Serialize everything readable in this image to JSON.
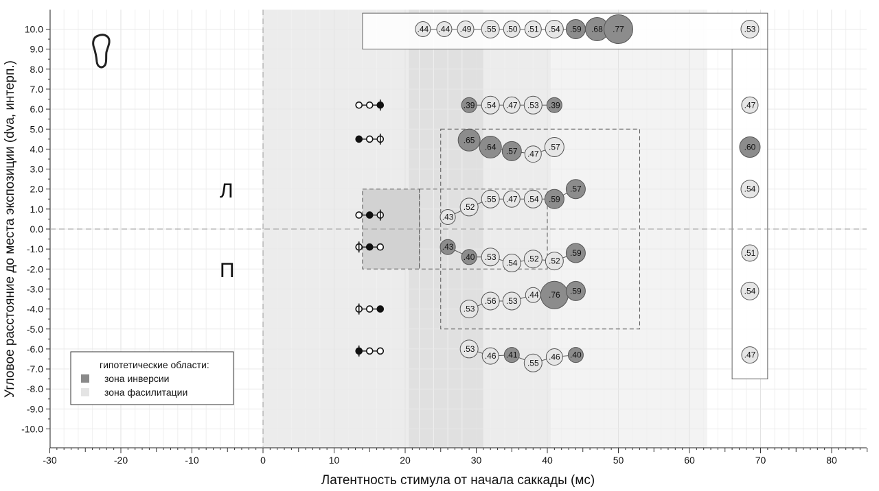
{
  "chart_data": {
    "type": "scatter",
    "title": "",
    "xlabel": "Латентность стимула от начала саккады (мс)",
    "ylabel": "Угловое расстояние до места экспозиции (dva, интерп.)",
    "xlim": [
      -30,
      85
    ],
    "ylim": [
      -11.0,
      11.0
    ],
    "x_ticks": [
      -30,
      -20,
      -10,
      0,
      10,
      20,
      30,
      40,
      50,
      60,
      70,
      80
    ],
    "y_ticks": [
      "10.0",
      "9.0",
      "8.0",
      "7.0",
      "6.0",
      "5.0",
      "4.0",
      "3.0",
      "2.0",
      "1.0",
      "0.0",
      "-1.0",
      "-2.0",
      "-3.0",
      "-4.0",
      "-5.0",
      "-6.0",
      "-7.0",
      "-8.0",
      "-9.0",
      "-10.0"
    ],
    "grid": true,
    "letters": {
      "left": "Л",
      "right": "П"
    },
    "legend": {
      "placement": "bottom-left",
      "title": "гипотетические области:",
      "items": [
        {
          "label": "зона инверсии",
          "color": "#8a8a8a"
        },
        {
          "label": "зона фасилитации",
          "color": "#e4e4e4"
        }
      ]
    },
    "colors": {
      "inversion_bubble": "#8c8c8c",
      "normal_bubble": "#e6e6e6",
      "bubble_stroke": "#555555",
      "band_light": "#ececec",
      "band_mid": "#e1e1e1"
    },
    "shaded_bands": [
      {
        "x": [
          0,
          20.5
        ],
        "shade": "light"
      },
      {
        "x": [
          20.5,
          31.0
        ],
        "shade": "mid"
      },
      {
        "x": [
          31.0,
          40.5
        ],
        "shade": "light"
      },
      {
        "x": [
          40.5,
          62.5
        ],
        "shade": "lightest"
      }
    ],
    "hypothesis_rects": [
      {
        "x": [
          14.0,
          22.0
        ],
        "y": [
          -2.0,
          2.0
        ],
        "style": "filled"
      },
      {
        "x": [
          25.0,
          53.0
        ],
        "y": [
          -5.0,
          5.0
        ],
        "style": "dashed"
      },
      {
        "x": [
          22.0,
          40.0
        ],
        "y": [
          -2.0,
          2.0
        ],
        "style": "dashed"
      }
    ],
    "panel_boxes": [
      {
        "x": [
          14.0,
          71.0
        ],
        "y": [
          9.0,
          10.8
        ]
      },
      {
        "x": [
          66.0,
          71.0
        ],
        "y": [
          -7.5,
          9.0
        ]
      }
    ],
    "series": [
      {
        "name": "10.0",
        "y": 10.0,
        "points": [
          {
            "x": 22.5,
            "v": ".44",
            "r": 11,
            "inv": false
          },
          {
            "x": 25.5,
            "v": ".44",
            "r": 11,
            "inv": false
          },
          {
            "x": 28.5,
            "v": ".49",
            "r": 12,
            "inv": false
          },
          {
            "x": 32.0,
            "v": ".55",
            "r": 13,
            "inv": false
          },
          {
            "x": 35.0,
            "v": ".50",
            "r": 12,
            "inv": false
          },
          {
            "x": 38.0,
            "v": ".51",
            "r": 12,
            "inv": false
          },
          {
            "x": 41.0,
            "v": ".54",
            "r": 13,
            "inv": false
          },
          {
            "x": 44.0,
            "v": ".59",
            "r": 14,
            "inv": true
          },
          {
            "x": 47.0,
            "v": ".68",
            "r": 17,
            "inv": true
          },
          {
            "x": 50.0,
            "v": ".77",
            "r": 21,
            "inv": true
          }
        ],
        "side": {
          "x": 68.5,
          "v": ".53",
          "r": 13,
          "inv": false
        }
      },
      {
        "name": "6.0",
        "y": 6.2,
        "points": [
          {
            "x": 29.0,
            "v": ".39",
            "r": 11,
            "inv": true
          },
          {
            "x": 32.0,
            "v": ".54",
            "r": 13,
            "inv": false
          },
          {
            "x": 35.0,
            "v": ".47",
            "r": 12,
            "inv": false
          },
          {
            "x": 38.0,
            "v": ".53",
            "r": 13,
            "inv": false
          },
          {
            "x": 41.0,
            "v": ".39",
            "r": 11,
            "inv": true
          }
        ],
        "side": {
          "x": 68.5,
          "v": ".47",
          "r": 12,
          "inv": false
        }
      },
      {
        "name": "4.0",
        "y": 4.1,
        "points": [
          {
            "x": 29.0,
            "v": ".65",
            "r": 16,
            "inv": true,
            "dy": 0.35
          },
          {
            "x": 32.0,
            "v": ".64",
            "r": 16,
            "inv": true
          },
          {
            "x": 35.0,
            "v": ".57",
            "r": 14,
            "inv": true,
            "dy": -0.2
          },
          {
            "x": 38.0,
            "v": ".47",
            "r": 12,
            "inv": false,
            "dy": -0.35
          },
          {
            "x": 41.0,
            "v": ".57",
            "r": 14,
            "inv": false
          }
        ],
        "side": {
          "x": 68.5,
          "v": ".60",
          "r": 15,
          "inv": true
        }
      },
      {
        "name": "1.0",
        "y": 1.5,
        "points": [
          {
            "x": 26.0,
            "v": ".43",
            "r": 11,
            "inv": false,
            "dy": -0.9
          },
          {
            "x": 29.0,
            "v": ".52",
            "r": 13,
            "inv": false,
            "dy": -0.4
          },
          {
            "x": 32.0,
            "v": ".55",
            "r": 13,
            "inv": false
          },
          {
            "x": 35.0,
            "v": ".47",
            "r": 12,
            "inv": false
          },
          {
            "x": 38.0,
            "v": ".54",
            "r": 13,
            "inv": false
          },
          {
            "x": 41.0,
            "v": ".59",
            "r": 14,
            "inv": true
          },
          {
            "x": 44.0,
            "v": ".57",
            "r": 14,
            "inv": true,
            "dy": 0.5
          }
        ],
        "side": {
          "x": 68.5,
          "v": ".54",
          "r": 13,
          "inv": false,
          "dy": 0.5
        }
      },
      {
        "name": "-1.0",
        "y": -1.5,
        "points": [
          {
            "x": 26.0,
            "v": ".43",
            "r": 11,
            "inv": true,
            "dy": 0.6
          },
          {
            "x": 29.0,
            "v": ".40",
            "r": 11,
            "inv": true,
            "dy": 0.1
          },
          {
            "x": 32.0,
            "v": ".53",
            "r": 13,
            "inv": false,
            "dy": 0.1
          },
          {
            "x": 35.0,
            "v": ".54",
            "r": 13,
            "inv": false,
            "dy": -0.2
          },
          {
            "x": 38.0,
            "v": ".52",
            "r": 13,
            "inv": false
          },
          {
            "x": 41.0,
            "v": ".52",
            "r": 13,
            "inv": false,
            "dy": -0.1
          },
          {
            "x": 44.0,
            "v": ".59",
            "r": 14,
            "inv": true,
            "dy": 0.3
          }
        ],
        "side": {
          "x": 68.5,
          "v": ".51",
          "r": 12,
          "inv": false,
          "dy": 0.3
        }
      },
      {
        "name": "-4.0",
        "y": -3.6,
        "points": [
          {
            "x": 29.0,
            "v": ".53",
            "r": 13,
            "inv": false,
            "dy": -0.4
          },
          {
            "x": 32.0,
            "v": ".56",
            "r": 13,
            "inv": false
          },
          {
            "x": 35.0,
            "v": ".53",
            "r": 13,
            "inv": false
          },
          {
            "x": 38.0,
            "v": ".44",
            "r": 11,
            "inv": false,
            "dy": 0.3
          },
          {
            "x": 41.0,
            "v": ".76",
            "r": 20,
            "inv": true,
            "dy": 0.3
          },
          {
            "x": 44.0,
            "v": ".59",
            "r": 14,
            "inv": true,
            "dy": 0.5
          }
        ],
        "side": {
          "x": 68.5,
          "v": ".54",
          "r": 13,
          "inv": false,
          "dy": 0.5
        }
      },
      {
        "name": "-6.0",
        "y": -6.35,
        "points": [
          {
            "x": 29.0,
            "v": ".53",
            "r": 13,
            "inv": false,
            "dy": 0.35
          },
          {
            "x": 32.0,
            "v": ".46",
            "r": 12,
            "inv": false
          },
          {
            "x": 35.0,
            "v": ".41",
            "r": 11,
            "inv": true,
            "dy": 0.05
          },
          {
            "x": 38.0,
            "v": ".55",
            "r": 13,
            "inv": false,
            "dy": -0.35
          },
          {
            "x": 41.0,
            "v": ".46",
            "r": 12,
            "inv": false,
            "dy": -0.05
          },
          {
            "x": 44.0,
            "v": ".40",
            "r": 11,
            "inv": true,
            "dy": 0.05
          }
        ],
        "side": {
          "x": 68.5,
          "v": ".47",
          "r": 12,
          "inv": false,
          "dy": 0.05
        }
      }
    ],
    "marker_rows": [
      {
        "y": 6.2,
        "markers": [
          "open",
          "open",
          "filled-cross"
        ]
      },
      {
        "y": 4.5,
        "markers": [
          "filled",
          "open",
          "open-cross"
        ]
      },
      {
        "y": 0.7,
        "markers": [
          "open",
          "filled",
          "open-cross"
        ]
      },
      {
        "y": -0.9,
        "markers": [
          "open-cross",
          "filled",
          "open"
        ]
      },
      {
        "y": -4.0,
        "markers": [
          "open-cross",
          "open",
          "filled"
        ]
      },
      {
        "y": -6.1,
        "markers": [
          "filled-cross",
          "open",
          "open"
        ]
      }
    ],
    "marker_x": [
      13.5,
      15.0,
      16.5
    ]
  }
}
